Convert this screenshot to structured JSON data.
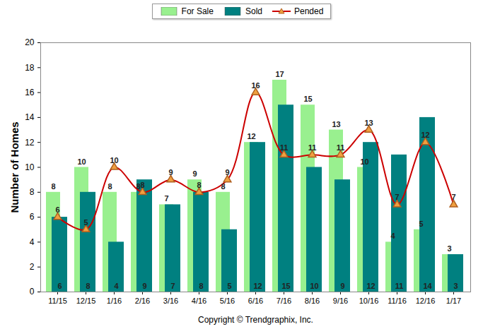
{
  "chart_data": {
    "type": "bar",
    "y_label": "Number of Homes",
    "caption": "Copyright © Trendgraphix, Inc.",
    "categories": [
      "11/15",
      "12/15",
      "1/16",
      "2/16",
      "3/16",
      "4/16",
      "5/16",
      "6/16",
      "7/16",
      "8/16",
      "9/16",
      "10/16",
      "11/16",
      "12/16",
      "1/17"
    ],
    "series": [
      {
        "name": "For Sale",
        "type": "bar",
        "color": "#99f08f",
        "values": [
          8,
          10,
          8,
          8,
          7,
          9,
          8,
          12,
          17,
          15,
          13,
          10,
          4,
          5,
          3
        ]
      },
      {
        "name": "Sold",
        "type": "bar",
        "color": "#008080",
        "values": [
          6,
          8,
          4,
          9,
          7,
          8,
          5,
          12,
          15,
          10,
          9,
          12,
          11,
          14,
          3
        ]
      },
      {
        "name": "Pended",
        "type": "line",
        "color": "#cc0000",
        "marker": "triangle",
        "values": [
          6,
          5,
          10,
          8,
          9,
          8,
          9,
          16,
          11,
          11,
          11,
          13,
          7,
          12,
          7
        ]
      }
    ],
    "ylim": [
      0,
      20
    ],
    "yticks": [
      0,
      2,
      4,
      6,
      8,
      10,
      12,
      14,
      16,
      18,
      20
    ],
    "grid": false,
    "legend": "top",
    "data_labels": true
  }
}
